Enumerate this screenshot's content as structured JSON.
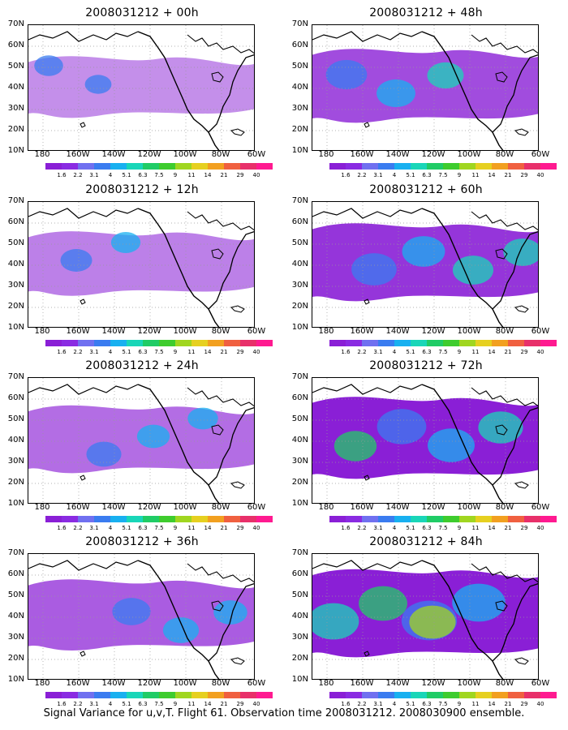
{
  "caption": "Signal Variance for u,v,T. Flight 61. Observation time 2008031212. 2008030900 ensemble.",
  "axes": {
    "lat_labels": [
      "70N",
      "60N",
      "50N",
      "40N",
      "30N",
      "20N",
      "10N"
    ],
    "lon_labels": [
      "180",
      "160W",
      "140W",
      "120W",
      "100W",
      "80W",
      "60W"
    ]
  },
  "colorbar": {
    "labels": [
      "1.6",
      "2.2",
      "3.1",
      "4",
      "5.1",
      "6.3",
      "7.5",
      "9",
      "11",
      "14",
      "21",
      "29",
      "40"
    ],
    "colors": [
      "#8a1fd6",
      "#8a2be2",
      "#7070f0",
      "#3a7cf0",
      "#18b0f0",
      "#19d6b8",
      "#20cc66",
      "#3ecc2e",
      "#a0d620",
      "#e6d020",
      "#f2a020",
      "#f06040",
      "#e8306a",
      "#ff1a90"
    ]
  },
  "panels": [
    {
      "title": "2008031212 + 00h",
      "intensity": 0.15
    },
    {
      "title": "2008031212 + 48h",
      "intensity": 0.45
    },
    {
      "title": "2008031212 + 12h",
      "intensity": 0.22
    },
    {
      "title": "2008031212 + 60h",
      "intensity": 0.55
    },
    {
      "title": "2008031212 + 24h",
      "intensity": 0.3
    },
    {
      "title": "2008031212 + 72h",
      "intensity": 0.65
    },
    {
      "title": "2008031212 + 36h",
      "intensity": 0.38
    },
    {
      "title": "2008031212 + 84h",
      "intensity": 0.8
    }
  ]
}
